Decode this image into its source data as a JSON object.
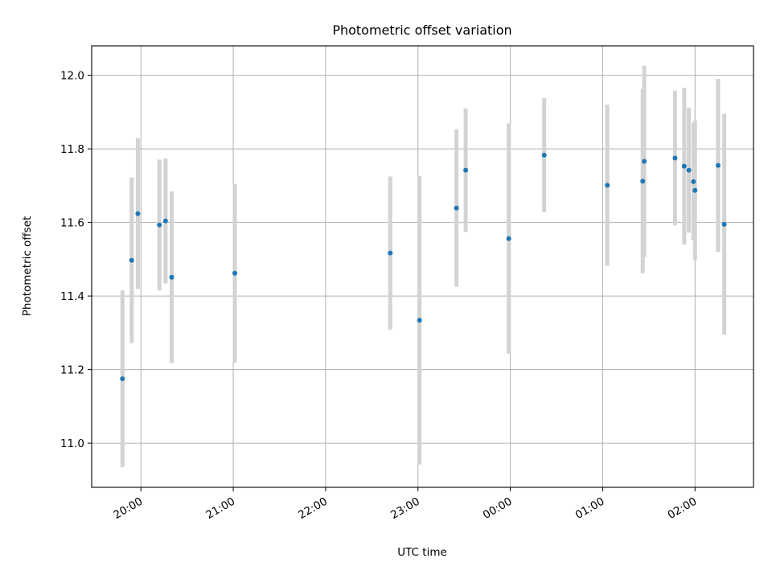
{
  "chart_data": {
    "type": "scatter",
    "title": "Photometric offset variation",
    "xlabel": "UTC time",
    "ylabel": "Photometric offset",
    "grid": true,
    "x_axis_type": "time",
    "x_ticks": [
      "19:00",
      "20:00",
      "21:00",
      "22:00",
      "23:00",
      "00:00",
      "01:00",
      "02:00"
    ],
    "x_tick_labels": [
      "20:00",
      "21:00",
      "22:00",
      "23:00",
      "00:00",
      "01:00",
      "02:00"
    ],
    "y_ticks": [
      11.0,
      11.2,
      11.4,
      11.6,
      11.8,
      12.0
    ],
    "y_tick_labels": [
      "11.0",
      "11.2",
      "11.4",
      "11.6",
      "11.8",
      "12.0"
    ],
    "ylim": [
      10.88,
      12.08
    ],
    "xlim": [
      "19:28",
      "02:38"
    ],
    "series": [
      {
        "marker_color": "#1f77b4",
        "errorbar_color": "#d3d3d3",
        "points": [
          {
            "x": "19:48",
            "y": 11.175,
            "err": 0.24
          },
          {
            "x": "19:54",
            "y": 11.497,
            "err": 0.225
          },
          {
            "x": "19:58",
            "y": 11.624,
            "err": 0.205
          },
          {
            "x": "20:12",
            "y": 11.593,
            "err": 0.178
          },
          {
            "x": "20:16",
            "y": 11.604,
            "err": 0.17
          },
          {
            "x": "20:20",
            "y": 11.451,
            "err": 0.233
          },
          {
            "x": "21:01",
            "y": 11.462,
            "err": 0.243
          },
          {
            "x": "22:42",
            "y": 11.517,
            "err": 0.208
          },
          {
            "x": "23:01",
            "y": 11.334,
            "err": 0.392
          },
          {
            "x": "23:25",
            "y": 11.639,
            "err": 0.214
          },
          {
            "x": "23:31",
            "y": 11.742,
            "err": 0.168
          },
          {
            "x": "23:59",
            "y": 11.556,
            "err": 0.313
          },
          {
            "x": "00:22",
            "y": 11.783,
            "err": 0.155
          },
          {
            "x": "01:03",
            "y": 11.701,
            "err": 0.219
          },
          {
            "x": "01:26",
            "y": 11.712,
            "err": 0.25
          },
          {
            "x": "01:27",
            "y": 11.766,
            "err": 0.26
          },
          {
            "x": "01:47",
            "y": 11.775,
            "err": 0.183
          },
          {
            "x": "01:53",
            "y": 11.753,
            "err": 0.213
          },
          {
            "x": "01:56",
            "y": 11.742,
            "err": 0.17
          },
          {
            "x": "01:59",
            "y": 11.711,
            "err": 0.16
          },
          {
            "x": "02:00",
            "y": 11.687,
            "err": 0.19
          },
          {
            "x": "02:15",
            "y": 11.755,
            "err": 0.235
          },
          {
            "x": "02:19",
            "y": 11.595,
            "err": 0.3
          }
        ]
      }
    ]
  }
}
